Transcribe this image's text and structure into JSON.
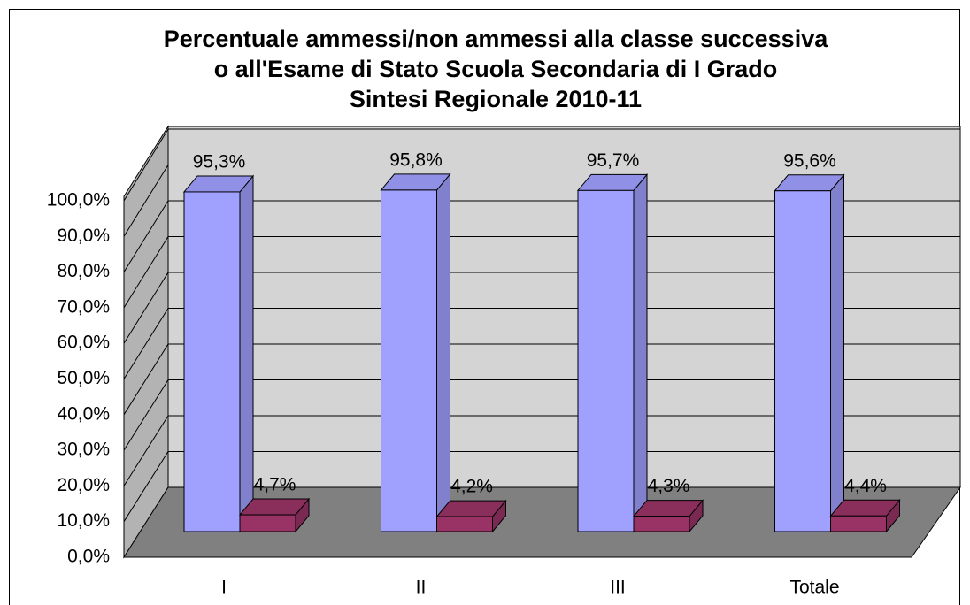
{
  "chart_data": {
    "type": "bar3d",
    "title": [
      "Percentuale ammessi/non ammessi alla classe successiva",
      "o all'Esame di Stato Scuola Secondaria di I Grado",
      "Sintesi Regionale 2010-11"
    ],
    "categories": [
      "I",
      "II",
      "III",
      "Totale"
    ],
    "series": [
      {
        "color": "#a0a0ff",
        "values": [
          95.3,
          95.8,
          95.7,
          95.6
        ],
        "value_labels": [
          "95,3%",
          "95,8%",
          "95,7%",
          "95,6%"
        ]
      },
      {
        "color": "#993366",
        "values": [
          4.7,
          4.2,
          4.3,
          4.4
        ],
        "value_labels": [
          "4,7%",
          "4,2%",
          "4,3%",
          "4,4%"
        ]
      }
    ],
    "ylim": [
      0,
      100
    ],
    "yticks": [
      {
        "value": 0,
        "label": "0,0%"
      },
      {
        "value": 10,
        "label": "10,0%"
      },
      {
        "value": 20,
        "label": "20,0%"
      },
      {
        "value": 30,
        "label": "30,0%"
      },
      {
        "value": 40,
        "label": "40,0%"
      },
      {
        "value": 50,
        "label": "50,0%"
      },
      {
        "value": 60,
        "label": "60,0%"
      },
      {
        "value": 70,
        "label": "70,0%"
      },
      {
        "value": 80,
        "label": "80,0%"
      },
      {
        "value": 90,
        "label": "90,0%"
      },
      {
        "value": 100,
        "label": "100,0%"
      }
    ],
    "grid": true
  }
}
